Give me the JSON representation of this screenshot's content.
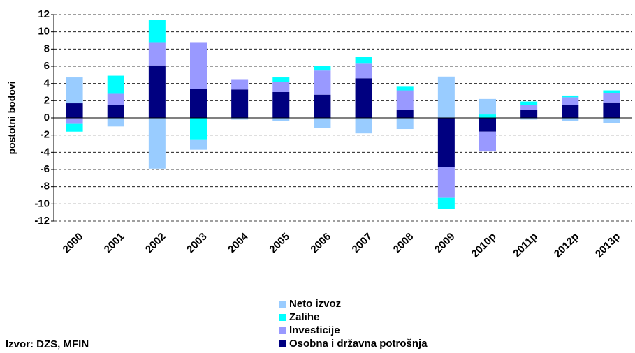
{
  "chart_data": {
    "type": "stacked_bar",
    "y_label": "postotni bodovi",
    "source": "Izvor: DZS, MFIN",
    "categories": [
      "2000",
      "2001",
      "2002",
      "2003",
      "2004",
      "2005",
      "2006",
      "2007",
      "2008",
      "2009",
      "2010p",
      "2011p",
      "2012p",
      "2013p"
    ],
    "series": [
      {
        "name": "Osobna i državna potrošnja",
        "color": "#000080",
        "values": [
          1.7,
          1.5,
          6.1,
          3.4,
          3.3,
          3.0,
          2.7,
          4.6,
          0.9,
          -5.7,
          -1.6,
          0.9,
          1.5,
          1.8
        ]
      },
      {
        "name": "Investicije",
        "color": "#9999ff",
        "values": [
          -0.7,
          1.3,
          2.7,
          5.4,
          1.2,
          1.2,
          2.8,
          1.7,
          2.3,
          -3.6,
          -2.3,
          0.6,
          0.9,
          1.1
        ]
      },
      {
        "name": "Zalihe",
        "color": "#00ffff",
        "values": [
          -0.9,
          2.1,
          2.6,
          -2.5,
          0,
          0.5,
          0.5,
          0.8,
          0.5,
          -1.3,
          0.4,
          0.4,
          0.2,
          0.3
        ]
      },
      {
        "name": "Neto izvoz",
        "color": "#99ccff",
        "values": [
          3.0,
          -1.0,
          -5.9,
          -1.2,
          -0.2,
          -0.4,
          -1.2,
          -1.8,
          -1.3,
          4.8,
          1.8,
          -0.2,
          -0.4,
          -0.6
        ]
      }
    ],
    "ylim": [
      -12,
      12
    ],
    "yticks": [
      -12,
      -10,
      -8,
      -6,
      -4,
      -2,
      0,
      2,
      4,
      6,
      8,
      10,
      12
    ],
    "grid": true
  }
}
